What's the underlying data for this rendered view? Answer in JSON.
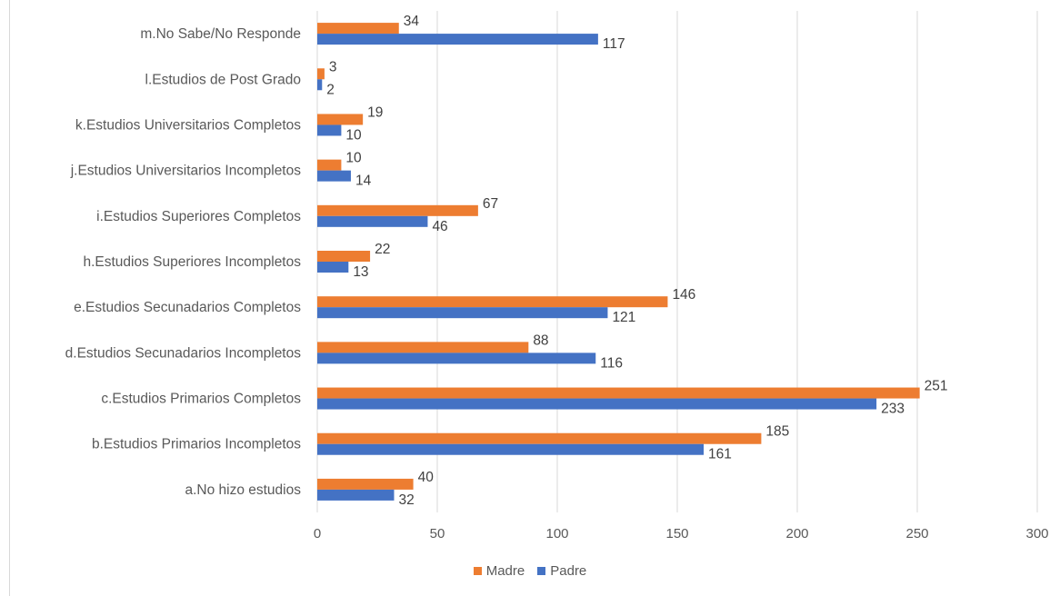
{
  "chart_data": {
    "type": "bar",
    "orientation": "horizontal",
    "title": "",
    "xlabel": "",
    "ylabel": "",
    "xlim": [
      0,
      300
    ],
    "x_ticks": [
      0,
      50,
      100,
      150,
      200,
      250,
      300
    ],
    "grid": true,
    "legend_position": "bottom",
    "categories": [
      "m.No Sabe/No Responde",
      "l.Estudios de Post Grado",
      "k.Estudios Universitarios Completos",
      "j.Estudios Universitarios Incompletos",
      "i.Estudios Superiores Completos",
      "h.Estudios Superiores Incompletos",
      "e.Estudios Secunadarios Completos",
      "d.Estudios Secunadarios Incompletos",
      "c.Estudios Primarios Completos",
      "b.Estudios Primarios Incompletos",
      "a.No hizo estudios"
    ],
    "series": [
      {
        "name": "Madre",
        "color": "#ED7D31",
        "values": [
          34,
          3,
          19,
          10,
          67,
          22,
          146,
          88,
          251,
          185,
          40
        ]
      },
      {
        "name": "Padre",
        "color": "#4472C4",
        "values": [
          117,
          2,
          10,
          14,
          46,
          13,
          121,
          116,
          233,
          161,
          32
        ]
      }
    ]
  }
}
